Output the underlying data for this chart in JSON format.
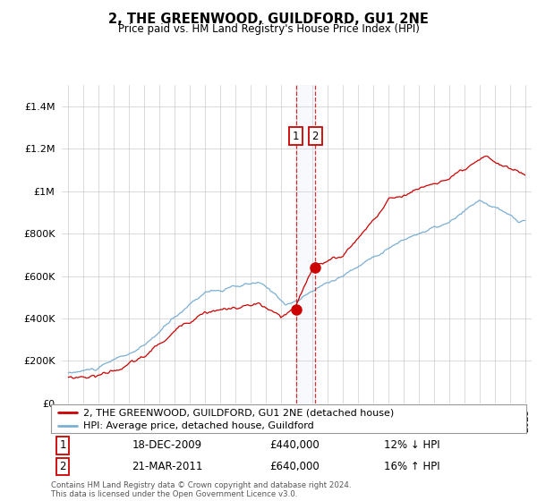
{
  "title": "2, THE GREENWOOD, GUILDFORD, GU1 2NE",
  "subtitle": "Price paid vs. HM Land Registry's House Price Index (HPI)",
  "ytick_values": [
    0,
    200000,
    400000,
    600000,
    800000,
    1000000,
    1200000,
    1400000
  ],
  "ylim": [
    0,
    1500000
  ],
  "hpi_color": "#7bafd4",
  "price_color": "#cc0000",
  "transaction1_price": 440000,
  "transaction1_date": "18-DEC-2009",
  "transaction1_hpi_text": "12% ↓ HPI",
  "transaction2_price": 640000,
  "transaction2_date": "21-MAR-2011",
  "transaction2_hpi_text": "16% ↑ HPI",
  "legend_label1": "2, THE GREENWOOD, GUILDFORD, GU1 2NE (detached house)",
  "legend_label2": "HPI: Average price, detached house, Guildford",
  "footer": "Contains HM Land Registry data © Crown copyright and database right 2024.\nThis data is licensed under the Open Government Licence v3.0.",
  "vline_x1": 2009.96,
  "vline_x2": 2011.22,
  "xlim_left": 1994.6,
  "xlim_right": 2025.4,
  "background_color": "#ffffff",
  "grid_color": "#cccccc",
  "hpi_seed": 10,
  "price_seed": 20
}
